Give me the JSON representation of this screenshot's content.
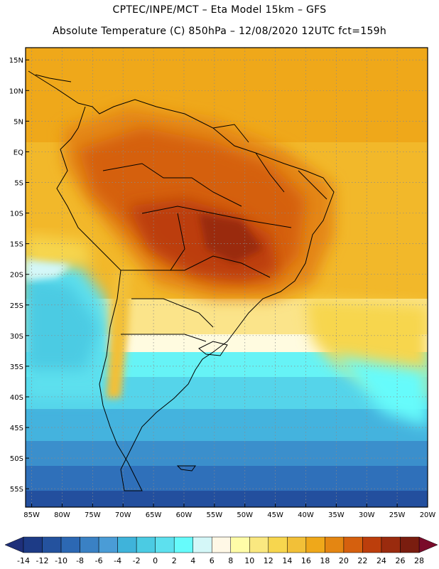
{
  "header": {
    "line1": "CPTEC/INPE/MCT –  Eta Model 15km – GFS",
    "line2": "Absolute Temperature (C) 850hPa – 12/08/2020 12UTC fct=159h"
  },
  "map": {
    "lat_labels": [
      "15N",
      "10N",
      "5N",
      "EQ",
      "5S",
      "10S",
      "15S",
      "20S",
      "25S",
      "30S",
      "35S",
      "40S",
      "45S",
      "50S",
      "55S"
    ],
    "lat_values": [
      15,
      10,
      5,
      0,
      -5,
      -10,
      -15,
      -20,
      -25,
      -30,
      -35,
      -40,
      -45,
      -50,
      -55
    ],
    "lon_labels": [
      "85W",
      "80W",
      "75W",
      "70W",
      "65W",
      "60W",
      "55W",
      "50W",
      "45W",
      "40W",
      "35W",
      "30W",
      "25W",
      "20W"
    ],
    "lon_values": [
      -85,
      -80,
      -75,
      -70,
      -65,
      -60,
      -55,
      -50,
      -45,
      -40,
      -35,
      -30,
      -25,
      -20
    ],
    "lon_range": [
      -86,
      -20
    ],
    "lat_range": [
      -58,
      17
    ]
  },
  "legend": {
    "tick_labels": [
      "-14",
      "-12",
      "-10",
      "-8",
      "-6",
      "-4",
      "-2",
      "0",
      "2",
      "4",
      "6",
      "8",
      "10",
      "12",
      "14",
      "16",
      "18",
      "20",
      "22",
      "24",
      "26",
      "28"
    ],
    "colors": [
      "#1d3b86",
      "#24529e",
      "#2c68b3",
      "#3a81c4",
      "#4a9cd6",
      "#3fb3da",
      "#4bcbe3",
      "#5de0ee",
      "#66fbfb",
      "#d4f7f8",
      "#fff8e6",
      "#fffca8",
      "#fae880",
      "#f7d64e",
      "#f2c038",
      "#efa81a",
      "#e48612",
      "#d5600e",
      "#bc3e0c",
      "#9a2b0e",
      "#7a1d0f"
    ],
    "low_color": "#1e2f7a",
    "high_color": "#7a0b2a"
  }
}
